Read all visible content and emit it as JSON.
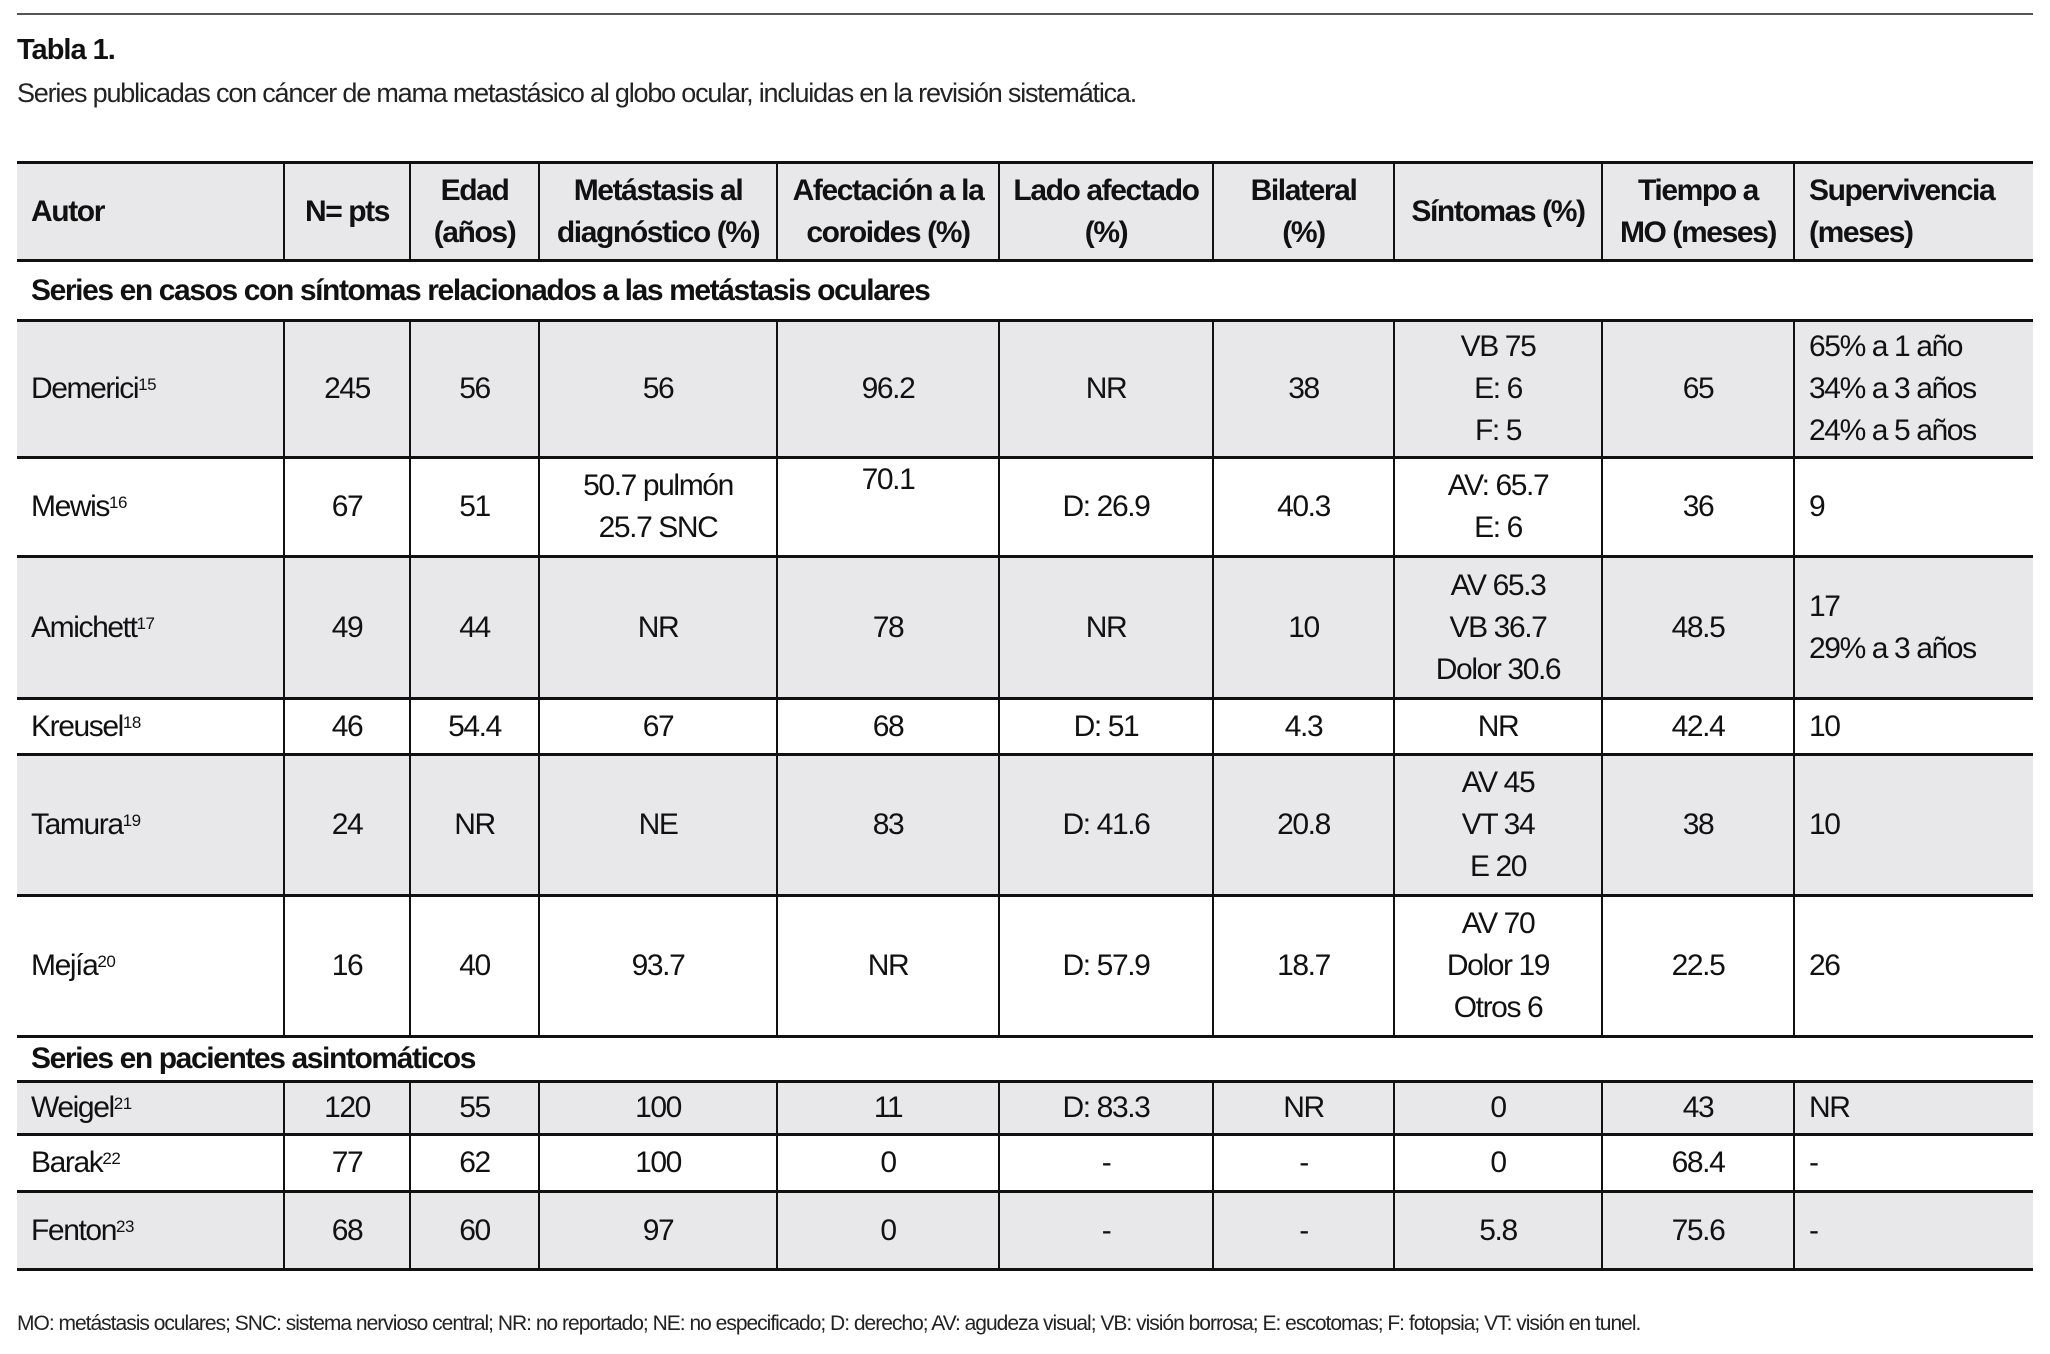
{
  "title": "Tabla 1.",
  "subtitle": "Series publicadas con cáncer de mama metastásico al globo ocular, incluidas en la revisión sistemática.",
  "headers": [
    [
      "Autor"
    ],
    [
      "N= pts"
    ],
    [
      "Edad",
      "(años)"
    ],
    [
      "Metástasis al",
      "diagnóstico (%)"
    ],
    [
      "Afectación a la",
      "coroides (%)"
    ],
    [
      "Lado afectado",
      "(%)"
    ],
    [
      "Bilateral",
      "(%)"
    ],
    [
      "Síntomas (%)"
    ],
    [
      "Tiempo a",
      "MO (meses)"
    ],
    [
      "Supervivencia",
      "(meses)"
    ]
  ],
  "sections": [
    {
      "label": "Series en casos con síntomas relacionados a las metástasis oculares",
      "rows": [
        {
          "author": "Demerici",
          "ref": "15",
          "shade": true,
          "cells": [
            [
              "245"
            ],
            [
              "56"
            ],
            [
              "56"
            ],
            [
              "96.2"
            ],
            [
              "NR"
            ],
            [
              "38"
            ],
            [
              "VB 75",
              "E: 6",
              "F: 5"
            ],
            [
              "65"
            ],
            [
              "65% a 1 año",
              "34% a 3 años",
              "24% a 5 años"
            ]
          ]
        },
        {
          "author": "Mewis",
          "ref": "16",
          "shade": false,
          "cells": [
            [
              "67"
            ],
            [
              "51"
            ],
            [
              "50.7 pulmón",
              "25.7 SNC"
            ],
            [
              "70.1"
            ],
            [
              "D: 26.9"
            ],
            [
              "40.3"
            ],
            [
              "AV: 65.7",
              "E: 6"
            ],
            [
              "36"
            ],
            [
              "9"
            ]
          ]
        },
        {
          "author": "Amichett",
          "ref": "17",
          "shade": true,
          "cells": [
            [
              "49"
            ],
            [
              "44"
            ],
            [
              "NR"
            ],
            [
              "78"
            ],
            [
              "NR"
            ],
            [
              "10"
            ],
            [
              "AV 65.3",
              "VB 36.7",
              "Dolor 30.6"
            ],
            [
              "48.5"
            ],
            [
              "17",
              "29% a 3 años"
            ]
          ]
        },
        {
          "author": "Kreusel",
          "ref": "18",
          "shade": false,
          "cells": [
            [
              "46"
            ],
            [
              "54.4"
            ],
            [
              "67"
            ],
            [
              "68"
            ],
            [
              "D: 51"
            ],
            [
              "4.3"
            ],
            [
              "NR"
            ],
            [
              "42.4"
            ],
            [
              "10"
            ]
          ]
        },
        {
          "author": "Tamura",
          "ref": "19",
          "shade": true,
          "cells": [
            [
              "24"
            ],
            [
              "NR"
            ],
            [
              "NE"
            ],
            [
              "83"
            ],
            [
              "D: 41.6"
            ],
            [
              "20.8"
            ],
            [
              "AV 45",
              "VT 34",
              "E 20"
            ],
            [
              "38"
            ],
            [
              "10"
            ]
          ]
        },
        {
          "author": "Mejía",
          "ref": "20",
          "shade": false,
          "cells": [
            [
              "16"
            ],
            [
              "40"
            ],
            [
              "93.7"
            ],
            [
              "NR"
            ],
            [
              "D: 57.9"
            ],
            [
              "18.7"
            ],
            [
              "AV 70",
              "Dolor 19",
              "Otros 6"
            ],
            [
              "22.5"
            ],
            [
              "26"
            ]
          ]
        }
      ]
    },
    {
      "label": "Series en pacientes asintomáticos",
      "rows": [
        {
          "author": "Weigel",
          "ref": "21",
          "shade": true,
          "cells": [
            [
              "120"
            ],
            [
              "55"
            ],
            [
              "100"
            ],
            [
              "11"
            ],
            [
              "D: 83.3"
            ],
            [
              "NR"
            ],
            [
              "0"
            ],
            [
              "43"
            ],
            [
              "NR"
            ]
          ]
        },
        {
          "author": "Barak",
          "ref": "22",
          "shade": false,
          "cells": [
            [
              "77"
            ],
            [
              "62"
            ],
            [
              "100"
            ],
            [
              "0"
            ],
            [
              "-"
            ],
            [
              "-"
            ],
            [
              "0"
            ],
            [
              "68.4"
            ],
            [
              "-"
            ]
          ]
        },
        {
          "author": "Fenton",
          "ref": "23",
          "shade": true,
          "cells": [
            [
              "68"
            ],
            [
              "60"
            ],
            [
              "97"
            ],
            [
              "0"
            ],
            [
              "-"
            ],
            [
              "-"
            ],
            [
              "5.8"
            ],
            [
              "75.6"
            ],
            [
              "-"
            ]
          ]
        }
      ]
    }
  ],
  "footnote": "MO: metástasis oculares; SNC: sistema nervioso central; NR: no reportado; NE: no especificado; D: derecho; AV: agudeza visual; VB: visión borrosa; E: escotomas; F: fotopsia; VT: visión en tunel."
}
